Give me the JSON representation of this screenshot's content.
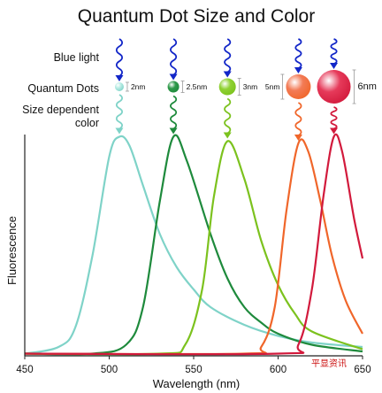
{
  "chart_data": {
    "type": "line",
    "title": "Quantum Dot Size and Color",
    "xlabel": "Wavelength (nm)",
    "ylabel": "Fluorescence",
    "xlim": [
      450,
      650
    ],
    "xticks": [
      450,
      500,
      550,
      600,
      650
    ],
    "grid": false,
    "row_labels": {
      "blue_light": "Blue light",
      "quantum_dots": "Quantum Dots",
      "size_dependent_1": "Size dependent",
      "size_dependent_2": "color"
    },
    "watermark": "平显资讯",
    "colors": {
      "excitation": "#1226c8",
      "axis": "#222222",
      "text": "#111111"
    },
    "series": [
      {
        "name": "2nm",
        "color": "#7fd3c8",
        "x": [
          450,
          470,
          480,
          490,
          500,
          506,
          512,
          520,
          530,
          540,
          550,
          560,
          580,
          600,
          620,
          650
        ],
        "y": [
          0.01,
          0.04,
          0.13,
          0.45,
          0.9,
          0.99,
          0.95,
          0.77,
          0.55,
          0.4,
          0.3,
          0.22,
          0.14,
          0.09,
          0.06,
          0.04
        ]
      },
      {
        "name": "2.5nm",
        "color": "#1e8a3c",
        "x": [
          450,
          490,
          510,
          520,
          530,
          538,
          546,
          560,
          570,
          580,
          590,
          600,
          620,
          650
        ],
        "y": [
          0.01,
          0.01,
          0.05,
          0.22,
          0.7,
          0.99,
          0.88,
          0.55,
          0.35,
          0.22,
          0.15,
          0.1,
          0.05,
          0.02
        ]
      },
      {
        "name": "3nm",
        "color": "#7cc21e",
        "x": [
          450,
          530,
          545,
          555,
          562,
          570,
          580,
          590,
          600,
          610,
          620,
          650
        ],
        "y": [
          0.01,
          0.01,
          0.05,
          0.3,
          0.72,
          0.97,
          0.8,
          0.52,
          0.32,
          0.19,
          0.11,
          0.03
        ]
      },
      {
        "name": "5nm",
        "color": "#f0662a",
        "x": [
          450,
          580,
          590,
          598,
          605,
          612,
          618,
          625,
          632,
          640,
          650
        ],
        "y": [
          0.01,
          0.01,
          0.04,
          0.22,
          0.66,
          0.96,
          0.92,
          0.7,
          0.45,
          0.25,
          0.1
        ]
      },
      {
        "name": "6nm",
        "color": "#d21a3c",
        "x": [
          450,
          600,
          612,
          620,
          627,
          633,
          638,
          645,
          650
        ],
        "y": [
          0.01,
          0.01,
          0.05,
          0.3,
          0.73,
          0.99,
          0.92,
          0.62,
          0.44
        ]
      }
    ],
    "dots": [
      {
        "label": "2nm",
        "color": "#b8ece4"
      },
      {
        "label": "2.5nm",
        "color": "#2f9a4a"
      },
      {
        "label": "3nm",
        "color": "#8fd132"
      },
      {
        "label": "5nm",
        "color": "#f37b56"
      },
      {
        "label": "6nm",
        "color": "#e63a5a"
      }
    ]
  }
}
